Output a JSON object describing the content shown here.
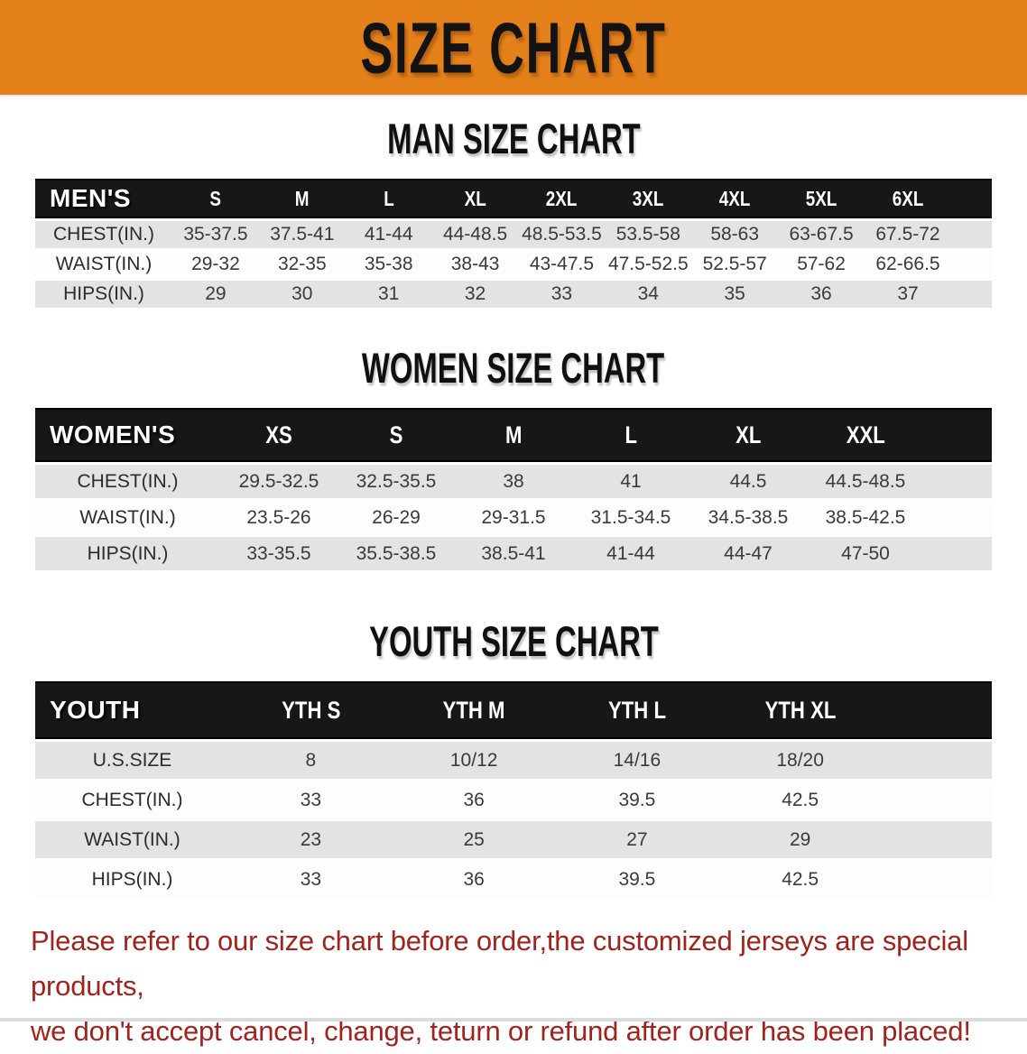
{
  "banner": {
    "title": "SIZE CHART",
    "bg_color": "#E5811B"
  },
  "sections": [
    {
      "id": "men",
      "title": "MAN SIZE CHART",
      "header_label": "MEN'S",
      "columns": [
        "S",
        "M",
        "L",
        "XL",
        "2XL",
        "3XL",
        "4XL",
        "5XL",
        "6XL"
      ],
      "rows": [
        {
          "label": "CHEST(IN.)",
          "values": [
            "35-37.5",
            "37.5-41",
            "41-44",
            "44-48.5",
            "48.5-53.5",
            "53.5-58",
            "58-63",
            "63-67.5",
            "67.5-72"
          ]
        },
        {
          "label": "WAIST(IN.)",
          "values": [
            "29-32",
            "32-35",
            "35-38",
            "38-43",
            "43-47.5",
            "47.5-52.5",
            "52.5-57",
            "57-62",
            "62-66.5"
          ]
        },
        {
          "label": "HIPS(IN.)",
          "values": [
            "29",
            "30",
            "31",
            "32",
            "33",
            "34",
            "35",
            "36",
            "37"
          ]
        }
      ]
    },
    {
      "id": "women",
      "title": "WOMEN SIZE CHART",
      "header_label": "WOMEN'S",
      "columns": [
        "XS",
        "S",
        "M",
        "L",
        "XL",
        "XXL"
      ],
      "rows": [
        {
          "label": "CHEST(IN.)",
          "values": [
            "29.5-32.5",
            "32.5-35.5",
            "38",
            "41",
            "44.5",
            "44.5-48.5"
          ]
        },
        {
          "label": "WAIST(IN.)",
          "values": [
            "23.5-26",
            "26-29",
            "29-31.5",
            "31.5-34.5",
            "34.5-38.5",
            "38.5-42.5"
          ]
        },
        {
          "label": "HIPS(IN.)",
          "values": [
            "33-35.5",
            "35.5-38.5",
            "38.5-41",
            "41-44",
            "44-47",
            "47-50"
          ]
        }
      ]
    },
    {
      "id": "youth",
      "title": "YOUTH SIZE CHART",
      "header_label": "YOUTH",
      "columns": [
        "YTH S",
        "YTH M",
        "YTH L",
        "YTH XL"
      ],
      "rows": [
        {
          "label": "U.S.SIZE",
          "values": [
            "8",
            "10/12",
            "14/16",
            "18/20"
          ]
        },
        {
          "label": "CHEST(IN.)",
          "values": [
            "33",
            "36",
            "39.5",
            "42.5"
          ]
        },
        {
          "label": "WAIST(IN.)",
          "values": [
            "23",
            "25",
            "27",
            "29"
          ]
        },
        {
          "label": "HIPS(IN.)",
          "values": [
            "33",
            "36",
            "39.5",
            "42.5"
          ]
        }
      ]
    }
  ],
  "footer": {
    "line1": "Please refer to our size chart before order,the customized jerseys are special products,",
    "line2": "we don't accept cancel, change, teturn or refund after order has been placed!"
  },
  "colors": {
    "banner_orange": "#E5811B",
    "header_band_black": "#171717",
    "gray_row": "#E3E3E5",
    "white_row": "#FDFDFD",
    "value_text": "#3A3A3A",
    "footer_red": "#A2231D"
  }
}
